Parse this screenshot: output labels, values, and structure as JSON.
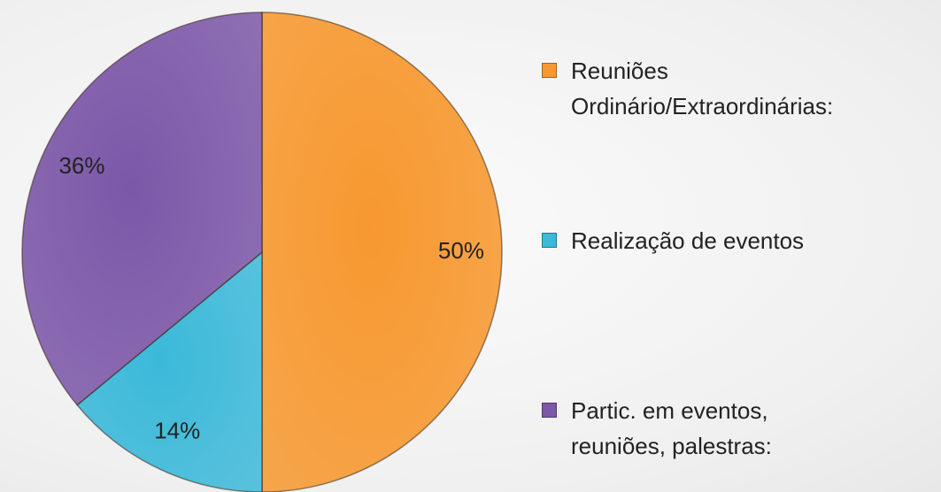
{
  "chart_data": {
    "type": "pie",
    "categories": [
      "Reuniões Ordinário/Extraordinárias:",
      "Realização de eventos",
      "Partic. em eventos, reuniões, palestras:"
    ],
    "values": [
      50,
      14,
      36
    ],
    "value_labels": [
      "50%",
      "14%",
      "36%"
    ],
    "colors": [
      "#f7982f",
      "#3bb9d9",
      "#7c58a8"
    ],
    "legend": "right"
  }
}
